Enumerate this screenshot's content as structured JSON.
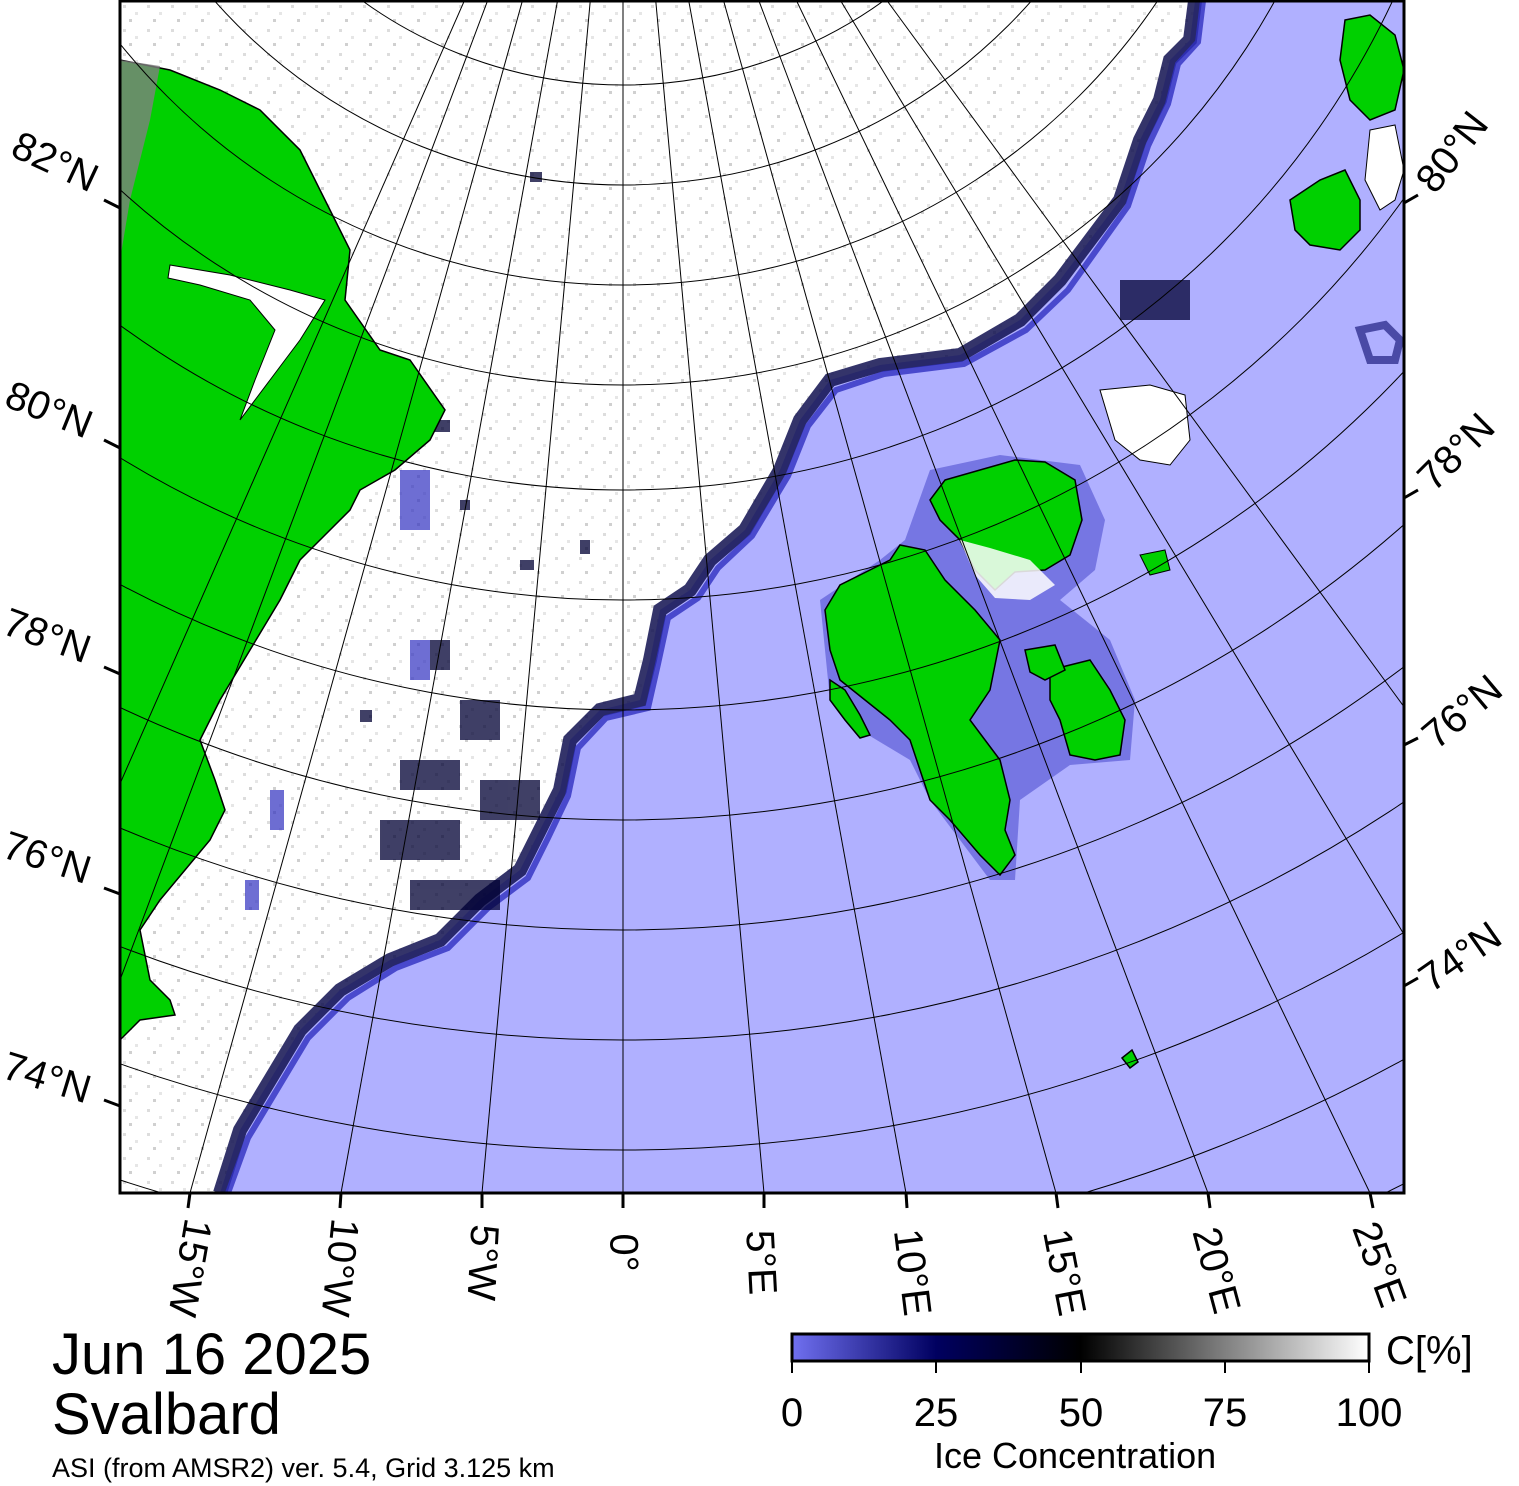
{
  "map": {
    "date": "Jun 16 2025",
    "region": "Svalbard",
    "source": "ASI (from AMSR2) ver. 5.4,  Grid 3.125 km",
    "colors": {
      "ocean": "#b0b0ff",
      "land": "#00d000",
      "land_ice": "#808080",
      "sea_ice": "#ffffff",
      "frame": "#000000"
    },
    "lat_labels_left": [
      "82°N",
      "80°N",
      "78°N",
      "76°N",
      "74°N"
    ],
    "lat_labels_right": [
      "80°N",
      "78°N",
      "76°N",
      "74°N"
    ],
    "lon_labels": [
      "15°W",
      "10°W",
      "5°W",
      "0°",
      "5°E",
      "10°E",
      "15°E",
      "20°E",
      "25°E"
    ]
  },
  "colorbar": {
    "title": "Ice Concentration",
    "unit": "C[%]",
    "ticks": [
      "0",
      "25",
      "50",
      "75",
      "100"
    ],
    "range": [
      0,
      100
    ],
    "stops": [
      "#7070f0",
      "#000060",
      "#000000",
      "#808080",
      "#ffffff"
    ]
  }
}
